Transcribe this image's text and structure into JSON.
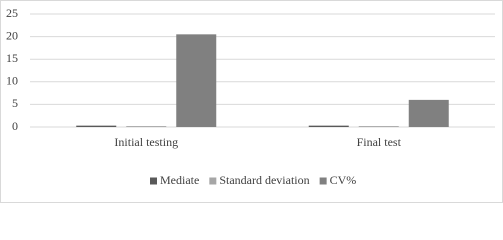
{
  "chart_data": {
    "type": "bar",
    "categories": [
      "Initial testing",
      "Final test"
    ],
    "series": [
      {
        "name": "Mediate",
        "color": "#595959",
        "values": [
          0.3,
          0.3
        ]
      },
      {
        "name": "Standard deviation",
        "color": "#a6a6a6",
        "values": [
          0.2,
          0.2
        ]
      },
      {
        "name": "CV%",
        "color": "#808080",
        "values": [
          20.5,
          6
        ]
      }
    ],
    "ylim": [
      0,
      25
    ],
    "yticks": [
      0,
      5,
      10,
      15,
      20,
      25
    ],
    "grid": true,
    "legend": "bottom"
  }
}
